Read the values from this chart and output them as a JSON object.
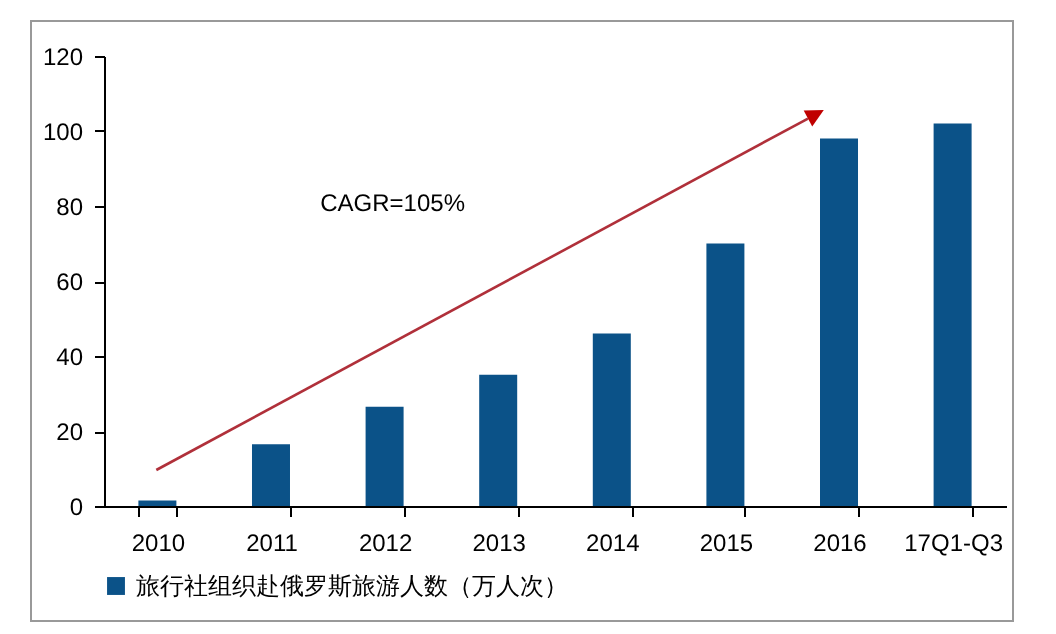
{
  "chart_data": {
    "type": "bar",
    "categories": [
      "2010",
      "2011",
      "2012",
      "2013",
      "2014",
      "2015",
      "2016",
      "17Q1-Q3"
    ],
    "series": [
      {
        "name": "旅行社组织赴俄罗斯旅游人数（万人次）",
        "color": "#0b5288",
        "values": [
          1.5,
          16.5,
          26.5,
          35,
          46,
          70,
          98,
          102
        ]
      }
    ],
    "ylim": [
      0,
      120
    ],
    "yticks": [
      0,
      20,
      40,
      60,
      80,
      100,
      120
    ],
    "grid": false,
    "legend": "bottom",
    "annotations": [
      "CAGR=105%"
    ]
  }
}
